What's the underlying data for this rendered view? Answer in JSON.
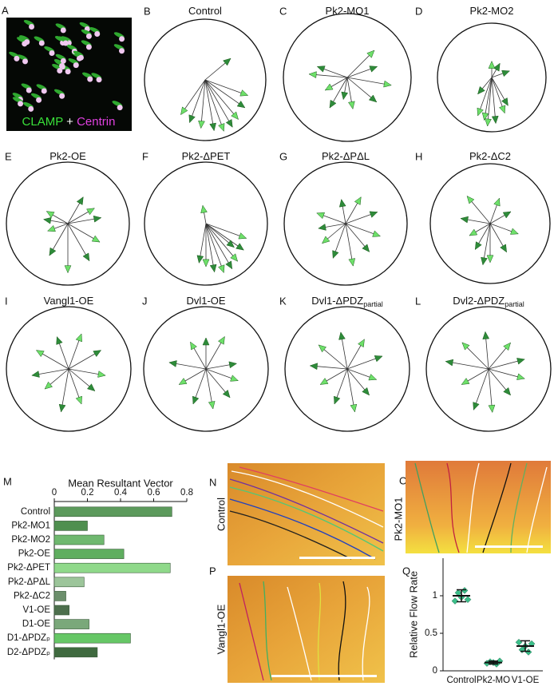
{
  "panel_a": {
    "panel": "A",
    "labels": [
      "CLAMP",
      "+",
      "Centrin"
    ]
  },
  "images": [
    {
      "panel": "N",
      "label": "Control"
    },
    {
      "panel": "O",
      "label": "Pk2-MO1"
    },
    {
      "panel": "P",
      "label": "Vangl1-OE"
    }
  ],
  "chart_data": [
    {
      "type": "vectors",
      "panel": "B",
      "title": "Control",
      "rlim": [
        0,
        1
      ],
      "colors": [
        "#6ee06a",
        "#2e8b3a"
      ],
      "angles": [
        -20,
        -35,
        -50,
        -60,
        -70,
        -80,
        -95,
        -110,
        -125,
        40
      ],
      "lengths": [
        0.75,
        0.8,
        0.85,
        0.9,
        0.9,
        0.85,
        0.8,
        0.75,
        0.7,
        0.55
      ]
    },
    {
      "type": "vectors",
      "panel": "C",
      "title": "Pk2-MO1",
      "rlim": [
        0,
        1
      ],
      "colors": [
        "#6ee06a",
        "#2e8b3a"
      ],
      "angles": [
        175,
        160,
        -150,
        -120,
        -80,
        -40,
        -10,
        20,
        45,
        -100
      ],
      "lengths": [
        0.6,
        0.5,
        0.4,
        0.55,
        0.5,
        0.6,
        0.7,
        0.5,
        0.6,
        0.35
      ]
    },
    {
      "type": "vectors",
      "panel": "D",
      "title": "Pk2-MO2",
      "rlim": [
        0,
        1
      ],
      "colors": [
        "#6ee06a",
        "#2e8b3a"
      ],
      "angles": [
        -100,
        -85,
        -70,
        -60,
        -110,
        60,
        90,
        -130,
        -95,
        20
      ],
      "lengths": [
        0.8,
        0.85,
        0.7,
        0.6,
        0.75,
        0.3,
        0.3,
        0.4,
        0.9,
        0.35
      ]
    },
    {
      "type": "vectors",
      "panel": "E",
      "title": "Pk2-OE",
      "rlim": [
        0,
        1
      ],
      "colors": [
        "#6ee06a",
        "#2e8b3a"
      ],
      "angles": [
        150,
        170,
        -160,
        -120,
        -90,
        -60,
        -30,
        10,
        30,
        60
      ],
      "lengths": [
        0.4,
        0.4,
        0.35,
        0.6,
        0.8,
        0.7,
        0.6,
        0.55,
        0.5,
        0.5
      ]
    },
    {
      "type": "vectors",
      "panel": "F",
      "title": "Pk2-ΔPET",
      "rlim": [
        0,
        1
      ],
      "colors": [
        "#6ee06a",
        "#2e8b3a"
      ],
      "angles": [
        -20,
        -35,
        -50,
        -60,
        -70,
        -80,
        -90,
        -100,
        100,
        -40
      ],
      "lengths": [
        0.7,
        0.75,
        0.8,
        0.85,
        0.85,
        0.8,
        0.7,
        0.65,
        0.3,
        0.6
      ]
    },
    {
      "type": "vectors",
      "panel": "G",
      "title": "Pk2-ΔPΔL",
      "rlim": [
        0,
        1
      ],
      "colors": [
        "#6ee06a",
        "#2e8b3a"
      ],
      "angles": [
        160,
        -170,
        -140,
        -110,
        -80,
        -50,
        -20,
        20,
        60,
        100
      ],
      "lengths": [
        0.5,
        0.45,
        0.5,
        0.6,
        0.7,
        0.6,
        0.6,
        0.55,
        0.5,
        0.4
      ]
    },
    {
      "type": "vectors",
      "panel": "H",
      "title": "Pk2-ΔC2",
      "rlim": [
        0,
        1
      ],
      "colors": [
        "#6ee06a",
        "#2e8b3a"
      ],
      "angles": [
        130,
        170,
        -150,
        -120,
        -90,
        -60,
        -20,
        30,
        70,
        -100
      ],
      "lengths": [
        0.6,
        0.5,
        0.4,
        0.5,
        0.65,
        0.55,
        0.5,
        0.4,
        0.45,
        0.7
      ]
    },
    {
      "type": "vectors",
      "panel": "I",
      "title": "Vangl1-OE",
      "rlim": [
        0,
        1
      ],
      "colors": [
        "#6ee06a",
        "#2e8b3a"
      ],
      "angles": [
        150,
        -170,
        -140,
        -100,
        -70,
        -40,
        -10,
        30,
        70,
        110
      ],
      "lengths": [
        0.6,
        0.6,
        0.5,
        0.7,
        0.6,
        0.55,
        0.6,
        0.6,
        0.6,
        0.55
      ]
    },
    {
      "type": "vectors",
      "panel": "J",
      "title": "Dvl1-OE",
      "rlim": [
        0,
        1
      ],
      "colors": [
        "#6ee06a",
        "#2e8b3a"
      ],
      "angles": [
        120,
        170,
        -150,
        -110,
        -80,
        -50,
        -20,
        10,
        60,
        90
      ],
      "lengths": [
        0.5,
        0.6,
        0.5,
        0.6,
        0.65,
        0.6,
        0.55,
        0.5,
        0.6,
        0.5
      ]
    },
    {
      "type": "vectors",
      "panel": "K",
      "title": "Dvl1-ΔPDZ",
      "title_sub": "partial",
      "rlim": [
        0,
        1
      ],
      "colors": [
        "#6ee06a",
        "#2e8b3a"
      ],
      "angles": [
        140,
        175,
        -150,
        -110,
        -80,
        -50,
        -20,
        20,
        60,
        100
      ],
      "lengths": [
        0.6,
        0.6,
        0.5,
        0.6,
        0.7,
        0.55,
        0.5,
        0.6,
        0.55,
        0.6
      ]
    },
    {
      "type": "vectors",
      "panel": "L",
      "title": "Dvl2-ΔPDZ",
      "title_sub": "partial",
      "rlim": [
        0,
        1
      ],
      "colors": [
        "#6ee06a",
        "#2e8b3a"
      ],
      "angles": [
        135,
        170,
        -150,
        -110,
        -85,
        -50,
        -15,
        15,
        50,
        95
      ],
      "lengths": [
        0.6,
        0.7,
        0.5,
        0.7,
        0.7,
        0.55,
        0.6,
        0.6,
        0.55,
        0.6
      ]
    },
    {
      "type": "hbar",
      "panel": "M",
      "title": "Mean Resultant Vector",
      "categories": [
        "Control",
        "Pk2-MO1",
        "Pk2-MO2",
        "Pk2-OE",
        "Pk2-ΔPET",
        "Pk2-ΔPΔL",
        "Pk2-ΔC2",
        "V1-OE",
        "D1-OE",
        "D1-ΔPDZₚ",
        "D2-ΔPDZₚ"
      ],
      "values": [
        0.71,
        0.2,
        0.3,
        0.42,
        0.7,
        0.18,
        0.07,
        0.09,
        0.21,
        0.46,
        0.26
      ],
      "colors": [
        "#5c9a5c",
        "#4f8f4f",
        "#6fb86f",
        "#5fae5f",
        "#8fd98a",
        "#9cc59a",
        "#6c8f6c",
        "#4d6f4d",
        "#7aa87a",
        "#66c766",
        "#3f6a3f"
      ],
      "xlim": [
        0,
        0.8
      ],
      "xticks": [
        0,
        0.2,
        0.4,
        0.6,
        0.8
      ]
    },
    {
      "type": "dots",
      "panel": "Q",
      "ylabel": "Relative Flow Rate",
      "categories": [
        "Control",
        "Pk2-MO",
        "V1-OE"
      ],
      "values": [
        [
          0.93,
          1.04,
          0.98,
          1.07,
          0.95
        ],
        [
          0.1,
          0.12,
          0.11,
          0.09,
          0.13
        ],
        [
          0.38,
          0.28,
          0.33,
          0.25,
          0.36
        ]
      ],
      "mean": [
        1.0,
        0.11,
        0.33
      ],
      "sd": [
        0.08,
        0.02,
        0.07
      ],
      "color": "#3cbf8a",
      "ylim": [
        0,
        1.5
      ],
      "yticks": [
        0,
        0.5,
        1
      ]
    }
  ]
}
